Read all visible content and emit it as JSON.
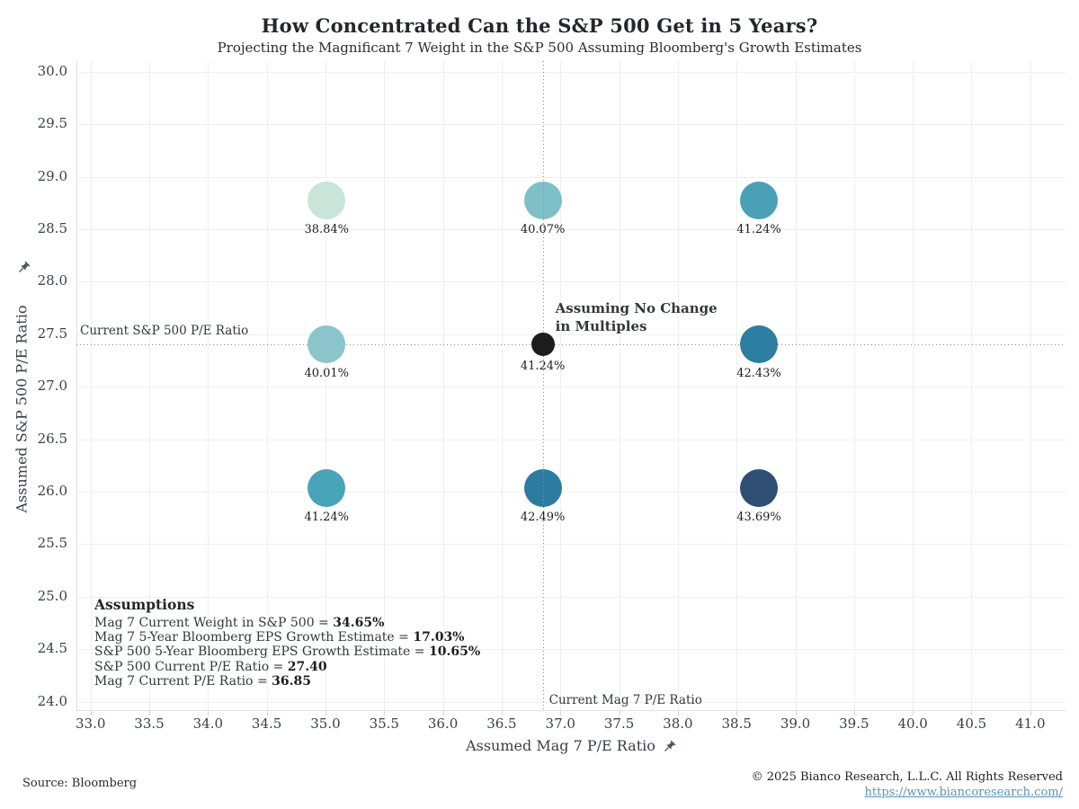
{
  "chart_data": {
    "type": "scatter",
    "title": "How Concentrated Can the S&P 500 Get in 5 Years?",
    "subtitle": "Projecting the Magnificant 7 Weight in the S&P 500 Assuming Bloomberg's Growth Estimates",
    "xlabel": "Assumed Mag 7 P/E Ratio",
    "ylabel": "Assumed S&P 500 P/E Ratio",
    "xlim": [
      32.88,
      41.3
    ],
    "ylim": [
      23.92,
      30.1
    ],
    "grid": true,
    "x_ticks": [
      "33.0",
      "33.5",
      "34.0",
      "34.5",
      "35.0",
      "35.5",
      "36.0",
      "36.5",
      "37.0",
      "37.5",
      "38.0",
      "38.5",
      "39.0",
      "39.5",
      "40.0",
      "40.5",
      "41.0"
    ],
    "y_ticks": [
      "24.0",
      "24.5",
      "25.0",
      "25.5",
      "26.0",
      "26.5",
      "27.0",
      "27.5",
      "28.0",
      "28.5",
      "29.0",
      "29.5",
      "30.0"
    ],
    "points": [
      {
        "x": 35.01,
        "y": 28.77,
        "label": "38.84%",
        "color": "#c9e4d9"
      },
      {
        "x": 36.85,
        "y": 28.77,
        "label": "40.07%",
        "color": "#7fbfc8"
      },
      {
        "x": 38.69,
        "y": 28.77,
        "label": "41.24%",
        "color": "#4aa0b5"
      },
      {
        "x": 35.01,
        "y": 27.4,
        "label": "40.01%",
        "color": "#8cc4cb"
      },
      {
        "x": 36.85,
        "y": 27.4,
        "label": "41.24%",
        "color": "#1c1c1c",
        "current": true
      },
      {
        "x": 38.69,
        "y": 27.4,
        "label": "42.43%",
        "color": "#2d7fa2"
      },
      {
        "x": 35.01,
        "y": 26.03,
        "label": "41.24%",
        "color": "#48a4b8"
      },
      {
        "x": 36.85,
        "y": 26.03,
        "label": "42.49%",
        "color": "#2d7ca0"
      },
      {
        "x": 38.69,
        "y": 26.03,
        "label": "43.69%",
        "color": "#2e4e74"
      }
    ],
    "reference_lines": {
      "horizontal": {
        "value": 27.4,
        "label": "Current S&P 500 P/E Ratio"
      },
      "vertical": {
        "value": 36.85,
        "label": "Current Mag 7 P/E Ratio"
      }
    },
    "annotation_no_change": [
      "Assuming No Change",
      "in Multiples"
    ],
    "legend_position": "none"
  },
  "assumptions": {
    "heading": "Assumptions",
    "items": [
      {
        "text": "Mag 7 Current Weight in S&P 500 = ",
        "value": "34.65%"
      },
      {
        "text": "Mag 7 5-Year Bloomberg EPS Growth Estimate = ",
        "value": "17.03%"
      },
      {
        "text": "S&P 500 5-Year Bloomberg EPS Growth Estimate = ",
        "value": "10.65%"
      },
      {
        "text": "S&P 500 Current P/E Ratio = ",
        "value": "27.40"
      },
      {
        "text": "Mag 7 Current P/E Ratio = ",
        "value": "36.85"
      }
    ]
  },
  "icons": {
    "axis_pin": "pushpin"
  },
  "footer": {
    "source": "Source: Bloomberg",
    "copyright": "© 2025 Bianco Research, L.L.C. All Rights Reserved",
    "link": "https://www.biancoresearch.com/"
  }
}
